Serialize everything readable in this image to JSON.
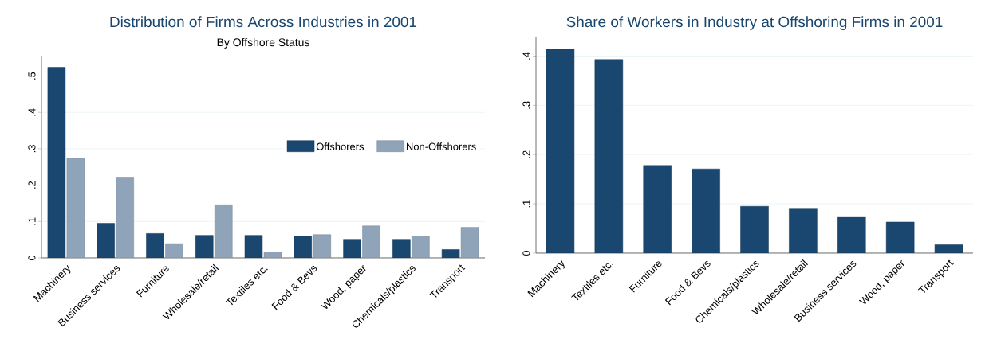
{
  "chart_data": [
    {
      "type": "bar",
      "title": "Distribution of Firms Across Industries in 2001",
      "subtitle": "By Offshore Status",
      "categories": [
        "Machinery",
        "Business services",
        "Furniture",
        "Wholesale/retail",
        "Textiles etc.",
        "Food & Bevs",
        "Wood, paper",
        "Chemicals/plastics",
        "Transport"
      ],
      "series": [
        {
          "name": "Offshorers",
          "color": "#1a476f",
          "values": [
            0.524,
            0.095,
            0.067,
            0.062,
            0.062,
            0.06,
            0.051,
            0.051,
            0.023
          ]
        },
        {
          "name": "Non-Offshorers",
          "color": "#90a4b9",
          "values": [
            0.274,
            0.222,
            0.039,
            0.146,
            0.015,
            0.064,
            0.088,
            0.06,
            0.084
          ]
        }
      ],
      "ylim": [
        0,
        0.556
      ],
      "yticks": [
        {
          "value": 0,
          "label": "0"
        },
        {
          "value": 0.1,
          "label": ".1"
        },
        {
          "value": 0.2,
          "label": ".2"
        },
        {
          "value": 0.3,
          "label": ".3"
        },
        {
          "value": 0.4,
          "label": ".4"
        },
        {
          "value": 0.5,
          "label": ".5"
        }
      ],
      "grid": "y",
      "legend": "right"
    },
    {
      "type": "bar",
      "title": "Share of Workers in Industry at Offshoring Firms in 2001",
      "categories": [
        "Machinery",
        "Textiles etc.",
        "Furniture",
        "Food & Bevs",
        "Chemicals/plastics",
        "Wholesale/retail",
        "Business services",
        "Wood, paper",
        "Transport"
      ],
      "values": [
        0.414,
        0.393,
        0.178,
        0.171,
        0.095,
        0.091,
        0.074,
        0.063,
        0.017
      ],
      "color": "#1a476f",
      "ylim": [
        0,
        0.438
      ],
      "yticks": [
        {
          "value": 0,
          "label": "0"
        },
        {
          "value": 0.1,
          "label": ".1"
        },
        {
          "value": 0.2,
          "label": ".2"
        },
        {
          "value": 0.3,
          "label": ".3"
        },
        {
          "value": 0.4,
          "label": ".4"
        }
      ],
      "grid": "y"
    }
  ]
}
